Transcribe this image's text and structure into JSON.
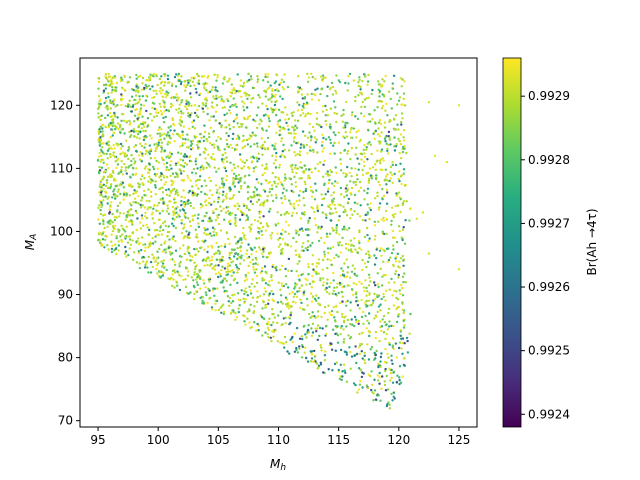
{
  "chart_data": {
    "type": "scatter",
    "xlabel": "M_h",
    "ylabel": "M_A",
    "xlim": [
      93.5,
      126.5
    ],
    "ylim": [
      69.0,
      127.5
    ],
    "xticks": [
      95,
      100,
      105,
      110,
      115,
      120,
      125
    ],
    "yticks": [
      70,
      80,
      90,
      100,
      110,
      120
    ],
    "grid": false,
    "colorbar": {
      "label": "Br(Ah →4τ)",
      "colormap": "viridis",
      "range": [
        0.99238,
        0.99296
      ],
      "ticks": [
        "0.9924",
        "0.9925",
        "0.9926",
        "0.9927",
        "0.9928",
        "0.9929"
      ],
      "tick_values": [
        0.9924,
        0.9925,
        0.9926,
        0.9927,
        0.9928,
        0.9929
      ]
    },
    "region": {
      "description_points": [
        [
          95,
          98
        ],
        [
          95,
          125
        ],
        [
          121,
          125
        ],
        [
          121,
          80
        ],
        [
          119.5,
          71.5
        ],
        [
          116,
          75
        ],
        [
          95,
          98
        ]
      ],
      "mh_range": [
        95,
        121
      ],
      "ma_range": [
        71.5,
        125
      ]
    },
    "outliers": [
      [
        125,
        120
      ],
      [
        125,
        94
      ],
      [
        124,
        111
      ],
      [
        123,
        112
      ],
      [
        122.5,
        120.5
      ],
      [
        122.5,
        96.5
      ],
      [
        122,
        103
      ],
      [
        121.5,
        102
      ]
    ],
    "value_range": [
      0.99238,
      0.99296
    ],
    "marker_size": "small",
    "num_points_approx": 4000
  },
  "colors": {
    "viridis_low": "#440154",
    "viridis_mid": "#21918c",
    "viridis_high": "#fde725"
  }
}
